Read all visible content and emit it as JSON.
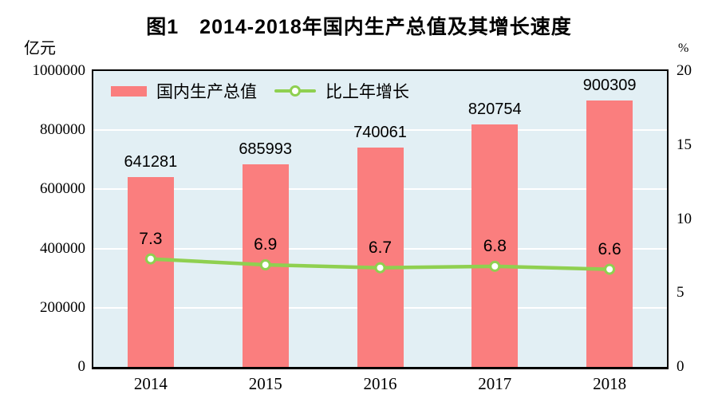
{
  "title": "图1　2014-2018年国内生产总值及其增长速度",
  "left_axis": {
    "unit": "亿元",
    "ticks": [
      1000000,
      800000,
      600000,
      400000,
      200000,
      0
    ],
    "grid_values": [
      800000,
      600000,
      400000,
      200000
    ]
  },
  "right_axis": {
    "unit": "%",
    "ticks": [
      20,
      15,
      10,
      5,
      0
    ]
  },
  "legend": {
    "bar_label": "国内生产总值",
    "line_label": "比上年增长"
  },
  "chart_data": {
    "type": "bar",
    "title": "图1　2014-2018年国内生产总值及其增长速度",
    "categories": [
      "2014",
      "2015",
      "2016",
      "2017",
      "2018"
    ],
    "series": [
      {
        "name": "国内生产总值",
        "type": "bar",
        "axis": "left",
        "unit": "亿元",
        "values": [
          641281,
          685993,
          740061,
          820754,
          900309
        ]
      },
      {
        "name": "比上年增长",
        "type": "line",
        "axis": "right",
        "unit": "%",
        "values": [
          7.3,
          6.9,
          6.7,
          6.8,
          6.6
        ]
      }
    ],
    "xlabel": "",
    "ylabel_left": "亿元",
    "ylabel_right": "%",
    "left_ylim": [
      0,
      1000000
    ],
    "right_ylim": [
      0,
      20
    ],
    "grid": "horizontal-white-every-200000",
    "legend_position": "top-left-inside"
  },
  "colors": {
    "bar": "#FA7E7E",
    "line": "#8FD050",
    "marker_fill": "#FFFFFF",
    "plot_bg": "#E2EFF4",
    "grid": "#FFFFFF",
    "axis": "#000000",
    "text": "#000000"
  }
}
